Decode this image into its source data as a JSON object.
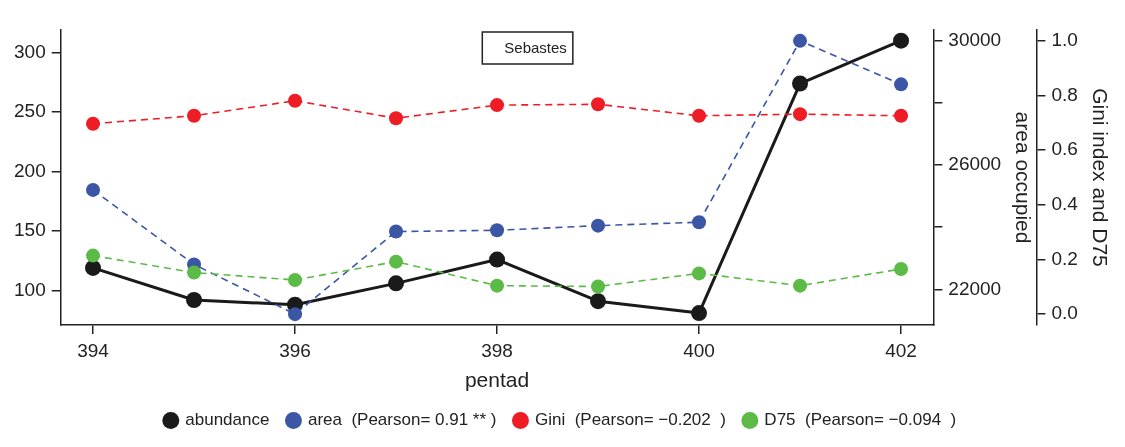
{
  "chart_data": {
    "type": "line",
    "xlabel": "pentad",
    "y2label": "area occupied",
    "y3label": "Gini index and D75",
    "x": [
      394,
      395,
      396,
      397,
      398,
      399,
      400,
      401,
      402
    ],
    "xlim": [
      393.68,
      402.32
    ],
    "xticks": [
      394,
      396,
      398,
      400,
      402
    ],
    "ylim": [
      71,
      319
    ],
    "yticks": [
      100,
      150,
      200,
      250,
      300
    ],
    "y2lim": [
      20850,
      30350
    ],
    "y2ticks": [
      22000,
      {
        "value": 24000,
        "label": null
      },
      26000,
      {
        "value": 28000,
        "label": null
      },
      30000
    ],
    "y3lim": [
      -0.04,
      1.04
    ],
    "y3ticks": [
      {
        "value": 0,
        "label": "0.0"
      },
      0.2,
      0.4,
      0.6,
      0.8,
      {
        "value": 1,
        "label": "1.0"
      }
    ],
    "marker": "circle",
    "legend": "bottom",
    "annotations": [
      "Sebastes"
    ],
    "series": [
      {
        "name": "abundance",
        "color": "#1a1a1a",
        "line_style": "solid",
        "values": [
          119,
          92,
          88,
          106,
          126,
          91,
          81,
          274,
          310
        ]
      },
      {
        "name": "area  (Pearson= 0.91 ** )",
        "color": "#3a56a5",
        "line_style": "dashed",
        "axis": "y2",
        "values": [
          25200,
          22800,
          21200,
          23860,
          23900,
          24050,
          24160,
          30000,
          28600
        ]
      },
      {
        "name": "Gini  (Pearson= −0.202  )",
        "color": "#ee1c25",
        "line_style": "dashed",
        "axis": "y3",
        "values": [
          0.697,
          0.726,
          0.781,
          0.717,
          0.765,
          0.768,
          0.726,
          0.732,
          0.726
        ]
      },
      {
        "name": "D75  (Pearson= −0.094  )",
        "color": "#5bbb46",
        "line_style": "dashed",
        "axis": "y3",
        "values": [
          0.214,
          0.152,
          0.125,
          0.192,
          0.104,
          0.101,
          0.149,
          0.104,
          0.165
        ]
      }
    ]
  }
}
